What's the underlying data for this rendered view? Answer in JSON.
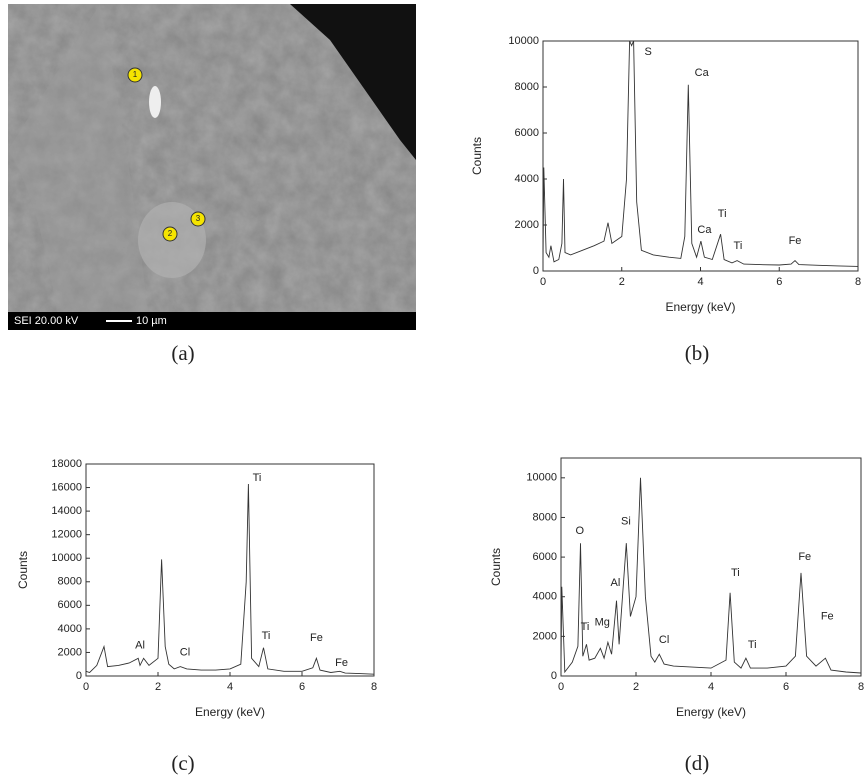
{
  "image": {
    "caption": "(a)",
    "instrument_label": "SEI 20.00 kV",
    "scale_label": "10 µm",
    "points": [
      "1",
      "2",
      "3"
    ]
  },
  "chart_data": [
    {
      "type": "line",
      "caption": "(b)",
      "xlabel": "Energy (keV)",
      "ylabel": "Counts",
      "color": "#333333",
      "xlim": [
        0,
        8
      ],
      "xticks": [
        0,
        2,
        4,
        6,
        8
      ],
      "ylim": [
        0,
        10000
      ],
      "yticks": [
        0,
        2000,
        4000,
        6000,
        8000,
        10000
      ],
      "x": [
        0,
        0.02,
        0.08,
        0.15,
        0.2,
        0.28,
        0.4,
        0.48,
        0.52,
        0.56,
        0.7,
        1.0,
        1.3,
        1.55,
        1.65,
        1.75,
        2.0,
        2.12,
        2.2,
        2.25,
        2.3,
        2.38,
        2.5,
        2.8,
        3.2,
        3.5,
        3.6,
        3.69,
        3.78,
        3.9,
        4.01,
        4.1,
        4.3,
        4.51,
        4.6,
        4.8,
        4.93,
        5.1,
        5.5,
        6.0,
        6.3,
        6.4,
        6.5,
        7,
        7.5,
        8
      ],
      "values": [
        300,
        4500,
        800,
        600,
        1100,
        400,
        500,
        1200,
        4000,
        800,
        700,
        900,
        1100,
        1300,
        2100,
        1200,
        1500,
        4000,
        10000,
        9800,
        10000,
        3000,
        900,
        700,
        600,
        550,
        1500,
        8100,
        1200,
        600,
        1300,
        600,
        500,
        1600,
        500,
        350,
        450,
        300,
        280,
        260,
        300,
        450,
        280,
        250,
        220,
        200
      ],
      "annotations": [
        {
          "text": "S",
          "x": 2.67,
          "y": 9520
        },
        {
          "text": "Ca",
          "x": 4.03,
          "y": 8600
        },
        {
          "text": "Ca",
          "x": 4.1,
          "y": 1780
        },
        {
          "text": "Ti",
          "x": 4.55,
          "y": 2480
        },
        {
          "text": "Ti",
          "x": 4.95,
          "y": 1090
        },
        {
          "text": "Fe",
          "x": 6.4,
          "y": 1300
        }
      ]
    },
    {
      "type": "line",
      "caption": "(c)",
      "xlabel": "Energy (keV)",
      "ylabel": "Counts",
      "color": "#333333",
      "xlim": [
        0,
        8
      ],
      "xticks": [
        0,
        2,
        4,
        6,
        8
      ],
      "ylim": [
        0,
        18000
      ],
      "yticks": [
        0,
        2000,
        4000,
        6000,
        8000,
        10000,
        12000,
        14000,
        16000,
        18000
      ],
      "x": [
        0,
        0.1,
        0.3,
        0.5,
        0.6,
        0.9,
        1.2,
        1.45,
        1.5,
        1.6,
        1.75,
        2.0,
        2.1,
        2.2,
        2.3,
        2.45,
        2.62,
        2.8,
        3.2,
        3.6,
        4.0,
        4.3,
        4.45,
        4.51,
        4.6,
        4.8,
        4.93,
        5.05,
        5.5,
        6.0,
        6.3,
        6.4,
        6.5,
        6.8,
        7.05,
        7.2,
        7.6,
        8
      ],
      "values": [
        400,
        300,
        900,
        2500,
        800,
        900,
        1100,
        1500,
        900,
        1500,
        900,
        1500,
        9900,
        2500,
        1000,
        600,
        800,
        600,
        500,
        500,
        600,
        1000,
        8000,
        16300,
        1500,
        800,
        2400,
        600,
        400,
        400,
        700,
        1500,
        500,
        300,
        400,
        250,
        200,
        150
      ],
      "annotations": [
        {
          "text": "Al",
          "x": 1.5,
          "y": 2600
        },
        {
          "text": "Cl",
          "x": 2.75,
          "y": 2000
        },
        {
          "text": "Ti",
          "x": 4.75,
          "y": 16800
        },
        {
          "text": "Ti",
          "x": 5.0,
          "y": 3400
        },
        {
          "text": "Fe",
          "x": 6.4,
          "y": 3200
        },
        {
          "text": "Fe",
          "x": 7.1,
          "y": 1100
        }
      ]
    },
    {
      "type": "line",
      "caption": "(d)",
      "xlabel": "Energy (keV)",
      "ylabel": "Counts",
      "color": "#333333",
      "xlim": [
        0,
        8
      ],
      "xticks": [
        0,
        2,
        4,
        6,
        8
      ],
      "ylim": [
        0,
        11000
      ],
      "yticks": [
        0,
        2000,
        4000,
        6000,
        8000,
        10000
      ],
      "x": [
        0,
        0.02,
        0.1,
        0.3,
        0.45,
        0.52,
        0.58,
        0.68,
        0.75,
        0.9,
        1.05,
        1.15,
        1.25,
        1.35,
        1.48,
        1.55,
        1.74,
        1.85,
        2.0,
        2.12,
        2.25,
        2.4,
        2.5,
        2.62,
        2.75,
        3.0,
        3.5,
        4.0,
        4.4,
        4.51,
        4.62,
        4.8,
        4.93,
        5.05,
        5.5,
        6.0,
        6.25,
        6.4,
        6.55,
        6.8,
        7.05,
        7.2,
        7.6,
        8
      ],
      "values": [
        500,
        4500,
        200,
        700,
        1500,
        6700,
        1000,
        1600,
        800,
        900,
        1400,
        900,
        1700,
        1100,
        3800,
        1600,
        6700,
        3000,
        4000,
        10000,
        4000,
        1000,
        700,
        1100,
        600,
        500,
        450,
        400,
        800,
        4200,
        700,
        400,
        900,
        400,
        400,
        500,
        1000,
        5200,
        1000,
        500,
        900,
        300,
        200,
        150
      ],
      "annotations": [
        {
          "text": "O",
          "x": 0.5,
          "y": 7300
        },
        {
          "text": "Ti",
          "x": 0.64,
          "y": 2470
        },
        {
          "text": "Mg",
          "x": 1.1,
          "y": 2700
        },
        {
          "text": "Al",
          "x": 1.45,
          "y": 4700
        },
        {
          "text": "Si",
          "x": 1.73,
          "y": 7800
        },
        {
          "text": "Cl",
          "x": 2.75,
          "y": 1800
        },
        {
          "text": "Ti",
          "x": 4.65,
          "y": 5200
        },
        {
          "text": "Ti",
          "x": 5.1,
          "y": 1550
        },
        {
          "text": "Fe",
          "x": 6.5,
          "y": 6000
        },
        {
          "text": "Fe",
          "x": 7.1,
          "y": 3000
        }
      ]
    }
  ]
}
